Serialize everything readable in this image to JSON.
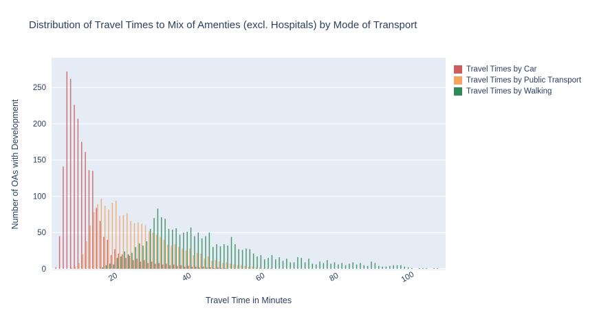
{
  "page": {
    "background": "#ffffff"
  },
  "chart_data": {
    "type": "bar",
    "subtype": "grouped-histogram",
    "title": "Distribution of Travel Times to Mix of Amenties (excl. Hospitals) by Mode of Transport",
    "xlabel": "Travel Time in Minutes",
    "ylabel": "Number of OAs with Development",
    "xrange": [
      3,
      110
    ],
    "yrange": [
      0,
      290
    ],
    "xticks": [
      20,
      40,
      60,
      80,
      100
    ],
    "yticks": [
      0,
      50,
      100,
      150,
      200,
      250
    ],
    "grid": true,
    "plot_bgcolor": "#E5ECF6",
    "gridcolor": "#FFFFFF",
    "font_color": "#2a3f5f",
    "legend_position": "right",
    "bin_width_minutes": 1,
    "series": [
      {
        "name": "Travel Times by Car",
        "color": "#CD5C5C",
        "start_minute": 4,
        "values": [
          2,
          45,
          141,
          272,
          262,
          226,
          207,
          175,
          161,
          136,
          135,
          84,
          66,
          44,
          40,
          19,
          27,
          21,
          20,
          15,
          18,
          12,
          14,
          10,
          12,
          8,
          10,
          7,
          8,
          6,
          7,
          5,
          6,
          4,
          5,
          3,
          4,
          3,
          3,
          2,
          3,
          2,
          2,
          1,
          2,
          1,
          1
        ]
      },
      {
        "name": "Travel Times by Public Transport",
        "color": "#F4A460",
        "start_minute": 8,
        "values": [
          2,
          3,
          8,
          20,
          38,
          60,
          78,
          89,
          97,
          87,
          82,
          91,
          94,
          73,
          74,
          77,
          66,
          63,
          64,
          62,
          60,
          52,
          50,
          47,
          44,
          40,
          33,
          32,
          34,
          30,
          28,
          25,
          28,
          19,
          22,
          21,
          14,
          17,
          11,
          12,
          10,
          8,
          9,
          7,
          6,
          5,
          5,
          4,
          3,
          3,
          2,
          2,
          1,
          1,
          1
        ]
      },
      {
        "name": "Travel Times by Walking",
        "color": "#2E8B57",
        "start_minute": 16,
        "values": [
          2,
          5,
          7,
          6,
          15,
          17,
          24,
          20,
          22,
          30,
          35,
          32,
          38,
          55,
          70,
          83,
          71,
          69,
          55,
          54,
          56,
          47,
          50,
          51,
          57,
          45,
          50,
          42,
          45,
          50,
          30,
          34,
          31,
          34,
          32,
          44,
          34,
          27,
          26,
          28,
          27,
          21,
          17,
          19,
          13,
          15,
          19,
          13,
          16,
          11,
          14,
          9,
          9,
          16,
          15,
          9,
          14,
          7,
          6,
          10,
          8,
          12,
          7,
          9,
          6,
          8,
          5,
          7,
          9,
          6,
          8,
          5,
          4,
          10,
          8,
          4,
          3,
          3,
          4,
          5,
          5,
          5,
          3,
          2,
          1,
          0,
          1,
          1,
          1,
          0,
          1,
          1
        ]
      }
    ]
  }
}
